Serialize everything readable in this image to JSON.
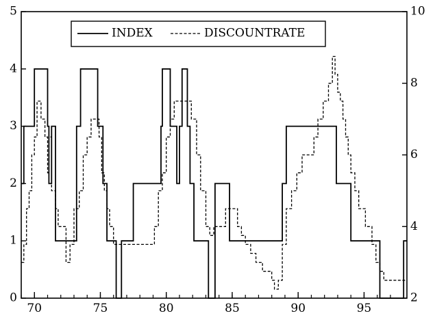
{
  "chart_data": {
    "type": "line",
    "title": "",
    "xlabel": "",
    "ylabel_left": "",
    "ylabel_right": "",
    "x_ticks": [
      "70",
      "75",
      "80",
      "85",
      "90",
      "95"
    ],
    "x_tick_values": [
      70,
      75,
      80,
      85,
      90,
      95
    ],
    "xlim": [
      1969.0,
      1998.25
    ],
    "y_left_ticks": [
      "0",
      "1",
      "2",
      "3",
      "4",
      "5"
    ],
    "y_left_tick_values": [
      0,
      1,
      2,
      3,
      4,
      5
    ],
    "y_left_lim": [
      0,
      5
    ],
    "y_right_ticks": [
      "2",
      "4",
      "6",
      "8",
      "10"
    ],
    "y_right_tick_values": [
      2,
      4,
      6,
      8,
      10
    ],
    "y_right_lim": [
      2,
      10
    ],
    "grid": false,
    "legend_position": "top-center",
    "series": [
      {
        "name": "INDEX",
        "axis": "left",
        "style": "solid",
        "color": "#000000",
        "step": true,
        "x": [
          1969.0,
          1969.2,
          1969.6,
          1970.0,
          1970.8,
          1971.0,
          1971.1,
          1971.3,
          1971.6,
          1971.8,
          1972.6,
          1972.8,
          1973.2,
          1973.5,
          1974.6,
          1974.8,
          1975.2,
          1975.5,
          1976.2,
          1976.6,
          1977.5,
          1978.0,
          1978.3,
          1979.1,
          1979.6,
          1979.7,
          1980.2,
          1980.3,
          1980.6,
          1980.8,
          1981.0,
          1981.2,
          1981.6,
          1981.8,
          1982.1,
          1982.3,
          1983.2,
          1983.5,
          1983.7,
          1984.0,
          1984.8,
          1985.4,
          1986.2,
          1987.0,
          1988.0,
          1988.8,
          1989.1,
          1990.2,
          1991.2,
          1992.6,
          1992.9,
          1993.4,
          1994.0,
          1995.2,
          1996.2,
          1997.0,
          1997.8,
          1998.0
        ],
        "values": [
          2,
          3,
          3,
          4,
          4,
          3,
          2,
          3,
          1,
          1,
          1,
          1,
          3,
          4,
          4,
          3,
          2,
          1,
          0,
          1,
          2,
          2,
          2,
          2,
          3,
          4,
          4,
          3,
          3,
          2,
          3,
          4,
          3,
          2,
          1,
          1,
          0,
          0,
          2,
          2,
          1,
          1,
          1,
          1,
          1,
          2,
          3,
          3,
          3,
          3,
          2,
          2,
          1,
          1,
          0,
          0,
          0,
          1
        ]
      },
      {
        "name": "DISCOUNTRATE",
        "axis": "right",
        "style": "dashed",
        "color": "#000000",
        "step": true,
        "x": [
          1969.0,
          1969.2,
          1969.4,
          1969.6,
          1969.8,
          1970.0,
          1970.2,
          1970.5,
          1970.8,
          1971.0,
          1971.1,
          1971.3,
          1971.6,
          1971.8,
          1972.4,
          1972.7,
          1973.0,
          1973.4,
          1973.7,
          1974.0,
          1974.3,
          1974.6,
          1974.9,
          1975.1,
          1975.3,
          1975.5,
          1975.7,
          1976.0,
          1977.5,
          1978.0,
          1978.3,
          1978.8,
          1979.1,
          1979.4,
          1979.7,
          1980.0,
          1980.3,
          1980.6,
          1981.0,
          1981.3,
          1981.9,
          1982.3,
          1982.6,
          1983.0,
          1983.3,
          1983.6,
          1984.2,
          1984.5,
          1985.0,
          1985.4,
          1985.7,
          1986.0,
          1986.4,
          1986.8,
          1987.3,
          1987.7,
          1988.0,
          1988.2,
          1988.5,
          1988.8,
          1989.1,
          1989.5,
          1989.9,
          1990.3,
          1990.7,
          1991.2,
          1991.5,
          1991.9,
          1992.3,
          1992.5,
          1992.6,
          1992.8,
          1993.0,
          1993.2,
          1993.4,
          1993.6,
          1993.8,
          1994.0,
          1994.3,
          1994.6,
          1995.1,
          1995.6,
          1995.9,
          1996.2,
          1996.5,
          1997.0,
          1997.5,
          1998.0
        ],
        "values": [
          3.0,
          3.5,
          4.5,
          5.0,
          6.0,
          6.5,
          7.5,
          7.0,
          6.5,
          5.5,
          6.5,
          5.0,
          4.5,
          4.0,
          3.0,
          3.5,
          4.5,
          5.0,
          6.0,
          6.5,
          7.0,
          7.0,
          6.5,
          5.5,
          5.0,
          4.5,
          4.0,
          3.5,
          3.5,
          3.5,
          3.5,
          3.5,
          4.0,
          5.0,
          5.5,
          6.5,
          7.0,
          7.5,
          7.5,
          7.5,
          7.0,
          6.0,
          5.0,
          4.0,
          3.75,
          4.0,
          4.0,
          4.5,
          4.5,
          4.0,
          3.75,
          3.5,
          3.25,
          3.0,
          2.75,
          2.75,
          2.5,
          2.25,
          2.5,
          3.5,
          4.5,
          5.0,
          5.5,
          6.0,
          6.0,
          6.5,
          7.0,
          7.5,
          8.0,
          8.0,
          8.75,
          8.25,
          7.75,
          7.5,
          7.0,
          6.5,
          6.0,
          5.5,
          5.0,
          4.5,
          4.0,
          3.5,
          3.0,
          2.75,
          2.5,
          2.5,
          2.5,
          2.5
        ]
      }
    ]
  }
}
